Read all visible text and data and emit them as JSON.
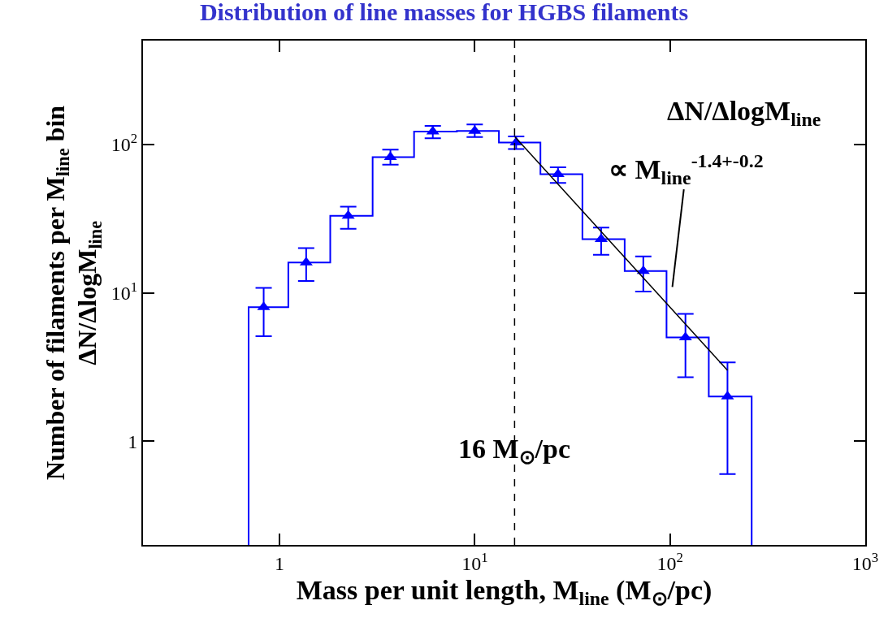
{
  "chart_data": {
    "type": "histogram",
    "title": "Distribution of line masses for HGBS filaments",
    "xlabel": "Mass per unit length, M$_{line}$ (M$_{⊙}$/pc)",
    "ylabel": "Number of filaments per M$_{line}$ bin",
    "log": "xy",
    "xlim": [
      0.2,
      1000
    ],
    "ylim": [
      0.2,
      500
    ],
    "xticks": [
      1,
      {
        "value": 10,
        "label": "10$^{1}$"
      },
      {
        "value": 100,
        "label": "10$^{2}$"
      },
      {
        "value": 1000,
        "label": "10$^{3}$"
      }
    ],
    "yticks": [
      1,
      {
        "value": 10,
        "label": "10$^{1}$"
      },
      {
        "value": 100,
        "label": "10$^{2}$"
      }
    ],
    "series": [
      {
        "color": "#0000ff",
        "bins": [
          0.695,
          1.11,
          1.82,
          3.0,
          4.89,
          8.1,
          13.3,
          21.7,
          35.6,
          58.6,
          96,
          158,
          262
        ],
        "values": [
          8,
          16,
          33,
          82,
          122,
          123,
          103,
          63,
          23,
          14,
          5,
          2
        ]
      },
      {
        "type": "scatter",
        "marker": "triangle",
        "color": "#0000ff",
        "x": [
          0.83,
          1.37,
          2.25,
          3.7,
          6.1,
          10,
          16.3,
          26.7,
          44.4,
          73,
          120,
          197
        ],
        "values": [
          8,
          16,
          33,
          82,
          122,
          123,
          103,
          63,
          23,
          14,
          5,
          2
        ],
        "errors": [
          [
            5.1,
            10.8
          ],
          [
            12,
            20
          ],
          [
            27,
            38
          ],
          [
            73,
            92
          ],
          [
            110,
            133
          ],
          [
            112,
            136
          ],
          [
            93,
            113
          ],
          [
            55,
            70
          ],
          [
            18,
            27.5
          ],
          [
            10.2,
            17.6
          ],
          [
            2.7,
            7.2
          ],
          [
            0.6,
            3.4
          ]
        ]
      },
      {
        "type": "line",
        "color": "#000000",
        "x": [
          16,
          197
        ],
        "values": [
          113,
          3.0
        ]
      }
    ],
    "ref_lines": [
      {
        "axis": "x",
        "value": 16,
        "label": "16 M$_{⊙}$/pc",
        "color": "#000000",
        "line_style": "dashed"
      }
    ],
    "annotations": [
      "ΔN/ΔlogM$_{line}$",
      "ΔN/ΔlogM$_{line}$",
      {
        "text": "∝ M$_{line}$$^{-1.4+-0.2}$",
        "x": 100,
        "y": 8
      }
    ]
  }
}
